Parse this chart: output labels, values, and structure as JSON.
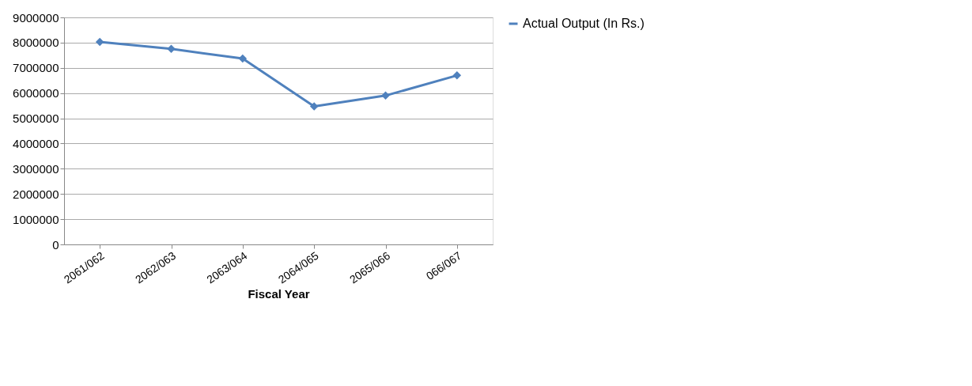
{
  "chart_data": {
    "type": "line",
    "xlabel": "Fiscal Year",
    "categories": [
      "2061/062",
      "2062/063",
      "2063/064",
      "2064/065",
      "2065/066",
      "066/067"
    ],
    "series": [
      {
        "name": "Actual Output (In Rs.)",
        "color": "#4f81bd",
        "values": [
          8030000,
          7750000,
          7370000,
          5470000,
          5900000,
          6700000
        ]
      }
    ],
    "ylim": [
      0,
      9000000
    ],
    "yticks": [
      0,
      1000000,
      2000000,
      3000000,
      4000000,
      5000000,
      6000000,
      7000000,
      8000000,
      9000000
    ],
    "grid": "y",
    "legend": "right",
    "marker": "diamond",
    "line_style": "solid"
  }
}
